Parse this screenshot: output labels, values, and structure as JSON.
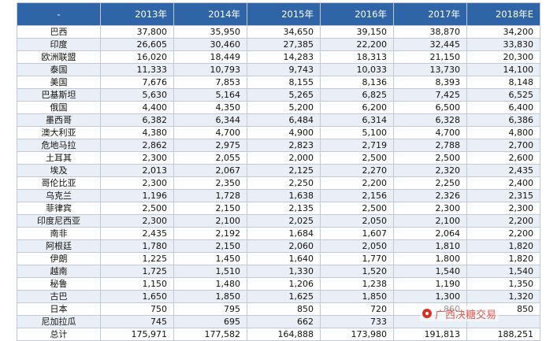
{
  "table": {
    "corner": "-",
    "columns": [
      "2013年",
      "2014年",
      "2015年",
      "2016年",
      "2017年",
      "2018年E"
    ],
    "rows": [
      {
        "name": "巴西",
        "values": [
          "37,800",
          "35,950",
          "34,650",
          "39,150",
          "38,870",
          "34,200"
        ]
      },
      {
        "name": "印度",
        "values": [
          "26,605",
          "30,460",
          "27,385",
          "22,200",
          "32,445",
          "33,830"
        ]
      },
      {
        "name": "欧洲联盟",
        "values": [
          "16,020",
          "18,449",
          "14,283",
          "18,313",
          "21,150",
          "20,300"
        ]
      },
      {
        "name": "泰国",
        "values": [
          "11,333",
          "10,793",
          "9,743",
          "10,033",
          "13,730",
          "14,100"
        ]
      },
      {
        "name": "美国",
        "values": [
          "7,676",
          "7,853",
          "8,155",
          "8,136",
          "8,393",
          "8,148"
        ]
      },
      {
        "name": "巴基斯坦",
        "values": [
          "5,630",
          "5,164",
          "5,265",
          "6,825",
          "7,425",
          "6,525"
        ]
      },
      {
        "name": "俄国",
        "values": [
          "4,400",
          "4,350",
          "5,200",
          "6,200",
          "6,500",
          "6,400"
        ]
      },
      {
        "name": "墨西哥",
        "values": [
          "6,382",
          "6,344",
          "6,484",
          "6,314",
          "6,328",
          "6,386"
        ]
      },
      {
        "name": "澳大利亚",
        "values": [
          "4,380",
          "4,700",
          "4,900",
          "5,100",
          "4,700",
          "4,800"
        ]
      },
      {
        "name": "危地马拉",
        "values": [
          "2,862",
          "2,975",
          "2,823",
          "2,719",
          "2,788",
          "2,700"
        ]
      },
      {
        "name": "土耳其",
        "values": [
          "2,300",
          "2,055",
          "2,000",
          "2,500",
          "2,500",
          "2,600"
        ]
      },
      {
        "name": "埃及",
        "values": [
          "2,013",
          "2,067",
          "2,125",
          "2,270",
          "2,320",
          "2,435"
        ]
      },
      {
        "name": "哥伦比亚",
        "values": [
          "2,300",
          "2,350",
          "2,250",
          "2,200",
          "2,250",
          "2,400"
        ]
      },
      {
        "name": "乌克兰",
        "values": [
          "1,196",
          "1,728",
          "1,638",
          "2,156",
          "2,326",
          "2,315"
        ]
      },
      {
        "name": "菲律宾",
        "values": [
          "2,500",
          "2,150",
          "2,135",
          "2,500",
          "2,300",
          "2,300"
        ]
      },
      {
        "name": "印度尼西亚",
        "values": [
          "2,300",
          "2,100",
          "2,025",
          "2,050",
          "2,100",
          "2,200"
        ]
      },
      {
        "name": "南非",
        "values": [
          "2,435",
          "2,192",
          "1,684",
          "1,607",
          "2,064",
          "2,200"
        ]
      },
      {
        "name": "阿根廷",
        "values": [
          "1,780",
          "2,150",
          "2,060",
          "2,050",
          "1,810",
          "1,820"
        ]
      },
      {
        "name": "伊朗",
        "values": [
          "1,225",
          "1,450",
          "1,640",
          "1,770",
          "1,800",
          "1,820"
        ]
      },
      {
        "name": "越南",
        "values": [
          "1,725",
          "1,510",
          "1,330",
          "1,520",
          "1,540",
          "1,540"
        ]
      },
      {
        "name": "秘鲁",
        "values": [
          "1,150",
          "1,480",
          "1,206",
          "1,238",
          "1,190",
          "1,350"
        ]
      },
      {
        "name": "古巴",
        "values": [
          "1,650",
          "1,850",
          "1,625",
          "1,850",
          "1,300",
          "1,320"
        ]
      },
      {
        "name": "日本",
        "values": [
          "750",
          "795",
          "850",
          "720",
          "860",
          "850"
        ]
      },
      {
        "name": "尼加拉瓜",
        "values": [
          "745",
          "695",
          "662",
          "733",
          "",
          ""
        ]
      }
    ],
    "total": {
      "name": "总计",
      "values": [
        "175,971",
        "177,582",
        "164,888",
        "173,980",
        "191,813",
        "188,251"
      ]
    }
  },
  "watermark": {
    "text": "广西决糖交易",
    "icon": "wechat-logo-icon",
    "color": "#d8332a"
  },
  "colors": {
    "header_bg": "#2f64a6",
    "stripe": "#e9eff6",
    "border": "#bfcad6"
  }
}
